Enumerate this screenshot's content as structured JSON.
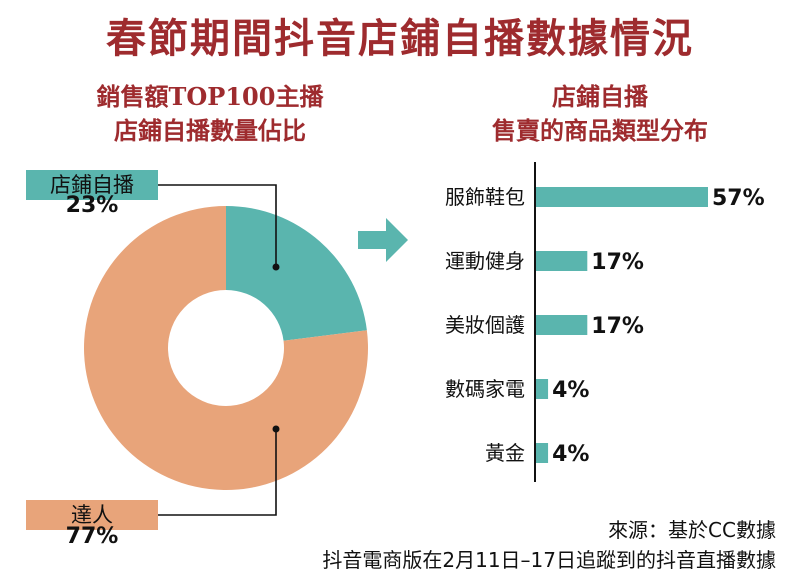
{
  "title": "春節期間抖音店鋪自播數據情況",
  "subtitle_left": [
    "銷售額TOP100主播",
    "店鋪自播數量佔比"
  ],
  "subtitle_right": [
    "店鋪自播",
    "售賣的商品類型分布"
  ],
  "colors": {
    "title": "#9e2b2e",
    "teal": "#5ab5ae",
    "peach": "#e8a47a"
  },
  "icons": {
    "arrow": "right-arrow-icon"
  },
  "source": [
    "來源：基於CC數據",
    "抖音電商版在2月11日–17日追蹤到的抖音直播數據"
  ],
  "chart_data": [
    {
      "type": "pie",
      "style": "donut",
      "categories": [
        "店鋪自播",
        "達人"
      ],
      "values": [
        23,
        77
      ],
      "value_labels": [
        "23%",
        "77%"
      ],
      "colors": [
        "#5ab5ae",
        "#e8a47a"
      ]
    },
    {
      "type": "bar",
      "orientation": "horizontal",
      "categories": [
        "服飾鞋包",
        "運動健身",
        "美妝個護",
        "數碼家電",
        "黃金"
      ],
      "values": [
        57,
        17,
        17,
        4,
        4
      ],
      "value_labels": [
        "57%",
        "17%",
        "17%",
        "4%",
        "4%"
      ],
      "color": "#5ab5ae"
    }
  ]
}
